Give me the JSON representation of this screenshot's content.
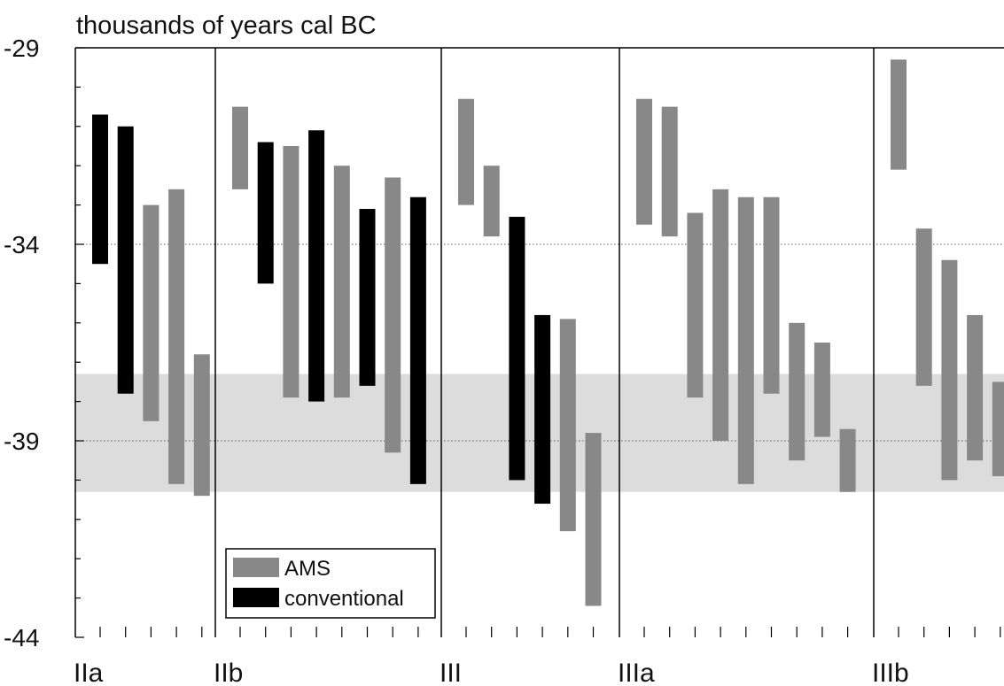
{
  "chart_data": {
    "type": "bar",
    "title": "thousands of years cal BC",
    "xlabel": "",
    "ylabel": "",
    "ylim": [
      -44,
      -29
    ],
    "yticks": [
      -29,
      -34,
      -39,
      -44
    ],
    "grid": {
      "major_dotted_lines": [
        -34,
        -39
      ]
    },
    "shaded_band": {
      "from": -37.3,
      "to": -40.3,
      "color": "#dcdcdc"
    },
    "phases": [
      {
        "label": "IIa",
        "slots": 5
      },
      {
        "label": "IIb",
        "slots": 8
      },
      {
        "label": "III",
        "slots": 6
      },
      {
        "label": "IIIa",
        "slots": 9
      },
      {
        "label": "IIIb",
        "slots": 5
      }
    ],
    "legend": {
      "position": "bottom-center",
      "items": [
        {
          "label": "AMS",
          "color": "#888888"
        },
        {
          "label": "conventional",
          "color": "#000000"
        }
      ]
    },
    "colors": {
      "AMS": "#888888",
      "conventional": "#000000",
      "band": "#dcdcdc"
    },
    "ranges": [
      {
        "phase": 0,
        "slot": 0,
        "method": "conventional",
        "from": -30.7,
        "to": -34.5
      },
      {
        "phase": 0,
        "slot": 1,
        "method": "conventional",
        "from": -31.0,
        "to": -37.8
      },
      {
        "phase": 0,
        "slot": 2,
        "method": "AMS",
        "from": -33.0,
        "to": -38.5
      },
      {
        "phase": 0,
        "slot": 3,
        "method": "AMS",
        "from": -32.6,
        "to": -40.1
      },
      {
        "phase": 0,
        "slot": 4,
        "method": "AMS",
        "from": -36.8,
        "to": -40.4
      },
      {
        "phase": 1,
        "slot": 0,
        "method": "AMS",
        "from": -30.5,
        "to": -32.6
      },
      {
        "phase": 1,
        "slot": 1,
        "method": "conventional",
        "from": -31.4,
        "to": -35.0
      },
      {
        "phase": 1,
        "slot": 2,
        "method": "AMS",
        "from": -31.5,
        "to": -37.9
      },
      {
        "phase": 1,
        "slot": 3,
        "method": "conventional",
        "from": -31.1,
        "to": -38.0
      },
      {
        "phase": 1,
        "slot": 4,
        "method": "AMS",
        "from": -32.0,
        "to": -37.9
      },
      {
        "phase": 1,
        "slot": 5,
        "method": "conventional",
        "from": -33.1,
        "to": -37.6
      },
      {
        "phase": 1,
        "slot": 6,
        "method": "AMS",
        "from": -32.3,
        "to": -39.3
      },
      {
        "phase": 1,
        "slot": 7,
        "method": "conventional",
        "from": -32.8,
        "to": -40.1
      },
      {
        "phase": 2,
        "slot": 0,
        "method": "AMS",
        "from": -30.3,
        "to": -33.0
      },
      {
        "phase": 2,
        "slot": 1,
        "method": "AMS",
        "from": -32.0,
        "to": -33.8
      },
      {
        "phase": 2,
        "slot": 2,
        "method": "conventional",
        "from": -33.3,
        "to": -40.0
      },
      {
        "phase": 2,
        "slot": 3,
        "method": "conventional",
        "from": -35.8,
        "to": -40.6
      },
      {
        "phase": 2,
        "slot": 4,
        "method": "AMS",
        "from": -35.9,
        "to": -41.3
      },
      {
        "phase": 2,
        "slot": 5,
        "method": "AMS",
        "from": -38.8,
        "to": -43.2
      },
      {
        "phase": 3,
        "slot": 0,
        "method": "AMS",
        "from": -30.3,
        "to": -33.5
      },
      {
        "phase": 3,
        "slot": 1,
        "method": "AMS",
        "from": -30.5,
        "to": -33.8
      },
      {
        "phase": 3,
        "slot": 2,
        "method": "AMS",
        "from": -33.2,
        "to": -37.9
      },
      {
        "phase": 3,
        "slot": 3,
        "method": "AMS",
        "from": -32.6,
        "to": -39.0
      },
      {
        "phase": 3,
        "slot": 4,
        "method": "AMS",
        "from": -32.8,
        "to": -40.1
      },
      {
        "phase": 3,
        "slot": 5,
        "method": "AMS",
        "from": -32.8,
        "to": -37.8
      },
      {
        "phase": 3,
        "slot": 6,
        "method": "AMS",
        "from": -36.0,
        "to": -39.5
      },
      {
        "phase": 3,
        "slot": 7,
        "method": "AMS",
        "from": -36.5,
        "to": -38.9
      },
      {
        "phase": 3,
        "slot": 8,
        "method": "AMS",
        "from": -38.7,
        "to": -40.3
      },
      {
        "phase": 4,
        "slot": 0,
        "method": "AMS",
        "from": -29.3,
        "to": -32.1
      },
      {
        "phase": 4,
        "slot": 1,
        "method": "AMS",
        "from": -33.6,
        "to": -37.6
      },
      {
        "phase": 4,
        "slot": 2,
        "method": "AMS",
        "from": -34.4,
        "to": -40.0
      },
      {
        "phase": 4,
        "slot": 3,
        "method": "AMS",
        "from": -35.8,
        "to": -39.5
      },
      {
        "phase": 4,
        "slot": 4,
        "method": "AMS",
        "from": -37.5,
        "to": -39.9
      }
    ]
  }
}
